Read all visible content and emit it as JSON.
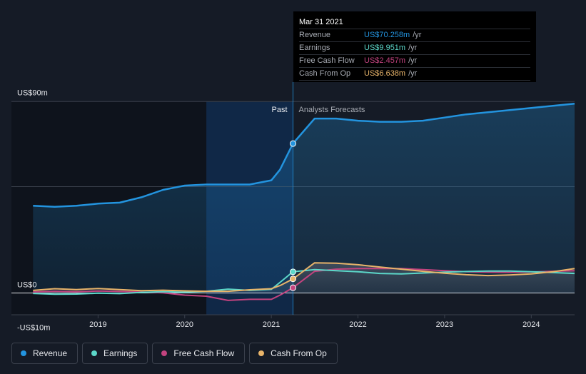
{
  "colors": {
    "background": "#151b26",
    "revenue": "#2394df",
    "earnings": "#5cd7c9",
    "free_cash_flow": "#c2437f",
    "cash_from_op": "#e8b46a",
    "past_highlight": "#123b6b"
  },
  "labels": {
    "past": "Past",
    "forecast": "Analysts Forecasts"
  },
  "tooltip": {
    "date": "Mar 31 2021",
    "rows": [
      {
        "label": "Revenue",
        "value": "US$70.258m",
        "unit": "/yr",
        "color": "#2394df"
      },
      {
        "label": "Earnings",
        "value": "US$9.951m",
        "unit": "/yr",
        "color": "#5cd7c9"
      },
      {
        "label": "Free Cash Flow",
        "value": "US$2.457m",
        "unit": "/yr",
        "color": "#c2437f"
      },
      {
        "label": "Cash From Op",
        "value": "US$6.638m",
        "unit": "/yr",
        "color": "#e8b46a"
      }
    ]
  },
  "legend": [
    {
      "label": "Revenue",
      "color": "#2394df"
    },
    {
      "label": "Earnings",
      "color": "#5cd7c9"
    },
    {
      "label": "Free Cash Flow",
      "color": "#c2437f"
    },
    {
      "label": "Cash From Op",
      "color": "#e8b46a"
    }
  ],
  "chart_data": {
    "type": "area",
    "title": "",
    "xlabel": "",
    "ylabel": "",
    "y_tick_labels": [
      "US$90m",
      "US$0",
      "-US$10m"
    ],
    "x_tick_labels": [
      "2019",
      "2020",
      "2021",
      "2022",
      "2023",
      "2024"
    ],
    "ylim": [
      -10,
      90
    ],
    "xlim": [
      2018.0,
      2024.5
    ],
    "past_highlight_range": [
      2020.25,
      2021.25
    ],
    "cursor_x": 2021.25,
    "series": [
      {
        "name": "Revenue",
        "x": [
          2018.25,
          2018.5,
          2018.75,
          2019.0,
          2019.25,
          2019.5,
          2019.75,
          2020.0,
          2020.25,
          2020.5,
          2020.75,
          2021.0,
          2021.1,
          2021.25,
          2021.5,
          2021.75,
          2022.0,
          2022.25,
          2022.5,
          2022.75,
          2023.0,
          2023.25,
          2023.5,
          2023.75,
          2024.0,
          2024.25,
          2024.5
        ],
        "values": [
          41,
          40.5,
          41,
          42,
          42.5,
          45,
          48.5,
          50.5,
          51,
          51,
          51,
          53,
          58,
          70.3,
          82,
          82,
          81,
          80.5,
          80.5,
          81,
          82.5,
          84,
          85,
          86,
          87,
          88,
          89
        ]
      },
      {
        "name": "Earnings",
        "x": [
          2018.25,
          2018.5,
          2018.75,
          2019.0,
          2019.25,
          2019.5,
          2019.75,
          2020.0,
          2020.25,
          2020.5,
          2020.75,
          2021.0,
          2021.1,
          2021.25,
          2021.5,
          2021.75,
          2022.0,
          2022.25,
          2022.5,
          2022.75,
          2023.0,
          2023.25,
          2023.5,
          2023.75,
          2024.0,
          2024.25,
          2024.5
        ],
        "values": [
          -0.2,
          -0.6,
          -0.5,
          -0.1,
          -0.3,
          0.3,
          0.6,
          0.4,
          0.8,
          1.8,
          1.2,
          1.7,
          5.0,
          10.0,
          11.0,
          10.5,
          10.0,
          9.2,
          9.0,
          9.4,
          9.8,
          10.1,
          10.3,
          10.3,
          10.0,
          9.6,
          9.2
        ]
      },
      {
        "name": "Free Cash Flow",
        "x": [
          2018.25,
          2018.5,
          2018.75,
          2019.0,
          2019.25,
          2019.5,
          2019.75,
          2020.0,
          2020.25,
          2020.5,
          2020.75,
          2021.0,
          2021.1,
          2021.25,
          2021.5,
          2021.75,
          2022.0,
          2022.25,
          2022.5,
          2022.75,
          2023.0,
          2023.25,
          2023.5,
          2023.75,
          2024.0,
          2024.25,
          2024.5
        ],
        "values": [
          0.5,
          0.8,
          0.6,
          0.9,
          0.7,
          0.4,
          0.1,
          -1.0,
          -1.5,
          -3.5,
          -3.0,
          -3.0,
          -1.0,
          2.5,
          10.2,
          11.2,
          11.5,
          11.5,
          11.5,
          11.0,
          10.5,
          10.0,
          9.8,
          9.7,
          9.9,
          10.2,
          10.5
        ]
      },
      {
        "name": "Cash From Op",
        "x": [
          2018.25,
          2018.5,
          2018.75,
          2019.0,
          2019.25,
          2019.5,
          2019.75,
          2020.0,
          2020.25,
          2020.5,
          2020.75,
          2021.0,
          2021.1,
          2021.25,
          2021.5,
          2021.75,
          2022.0,
          2022.25,
          2022.5,
          2022.75,
          2023.0,
          2023.25,
          2023.5,
          2023.75,
          2024.0,
          2024.25,
          2024.5
        ],
        "values": [
          1.2,
          2.0,
          1.6,
          2.1,
          1.6,
          1.1,
          1.3,
          1.0,
          0.8,
          0.8,
          1.5,
          2.0,
          3.5,
          6.6,
          14.2,
          14.0,
          13.3,
          12.2,
          11.2,
          10.2,
          9.3,
          8.6,
          8.2,
          8.5,
          9.0,
          10.0,
          11.5
        ]
      }
    ],
    "markers": [
      {
        "series": "Revenue",
        "x": 2021.25,
        "y": 70.258
      },
      {
        "series": "Earnings",
        "x": 2021.25,
        "y": 9.951
      },
      {
        "series": "Free Cash Flow",
        "x": 2021.25,
        "y": 2.457
      },
      {
        "series": "Cash From Op",
        "x": 2021.25,
        "y": 6.638
      }
    ]
  }
}
